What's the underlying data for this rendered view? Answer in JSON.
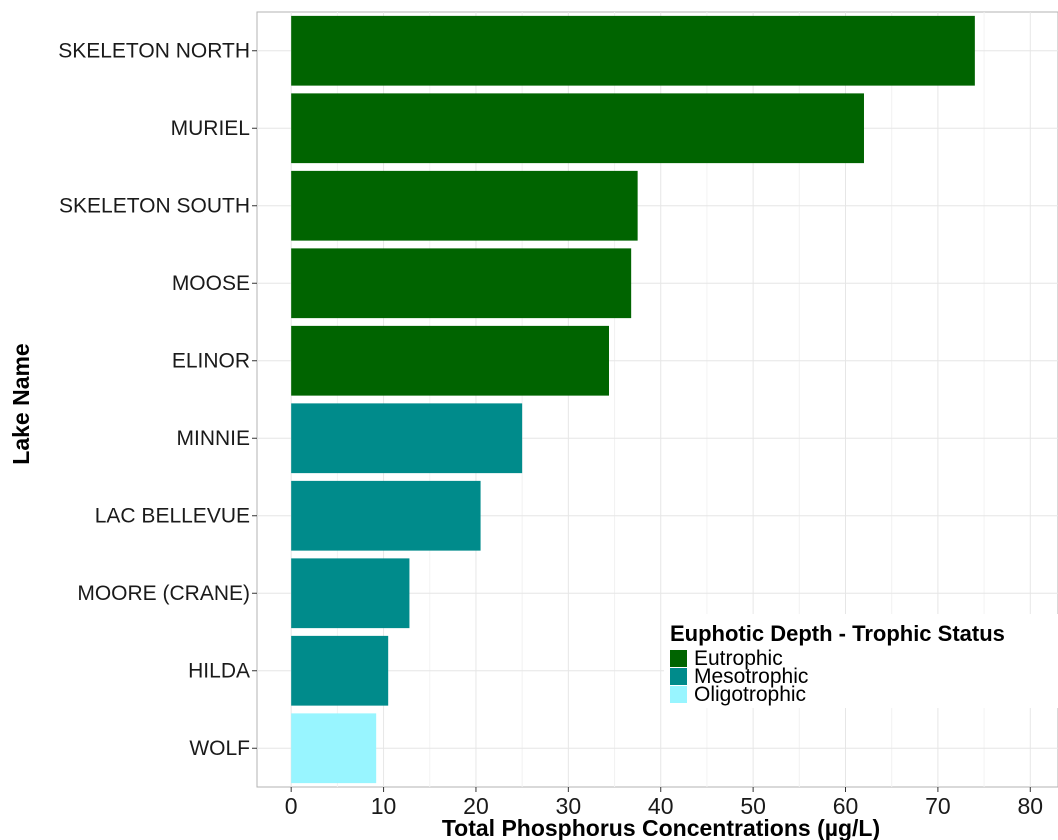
{
  "chart_data": {
    "type": "bar",
    "orientation": "horizontal",
    "title": "",
    "xlabel": "Total Phosphorus Concentrations (µg/L)",
    "ylabel": "Lake Name",
    "xlim": [
      -3.7,
      83
    ],
    "x_ticks": [
      0,
      10,
      20,
      30,
      40,
      50,
      60,
      70,
      80
    ],
    "grid": true,
    "legend_position": "bottom-right",
    "legend": {
      "title": "Euphotic Depth - Trophic Status",
      "entries": [
        {
          "label": "Eutrophic",
          "color": "#006400"
        },
        {
          "label": "Mesotrophic",
          "color": "#008B8B"
        },
        {
          "label": "Oligotrophic",
          "color": "#98F5FF"
        }
      ]
    },
    "categories": [
      "SKELETON NORTH",
      "MURIEL",
      "SKELETON SOUTH",
      "MOOSE",
      "ELINOR",
      "MINNIE",
      "LAC BELLEVUE",
      "MOORE (CRANE)",
      "HILDA",
      "WOLF"
    ],
    "values": [
      74,
      62,
      37.5,
      36.8,
      34.4,
      25,
      20.5,
      12.8,
      10.5,
      9.2
    ],
    "status": [
      "Eutrophic",
      "Eutrophic",
      "Eutrophic",
      "Eutrophic",
      "Eutrophic",
      "Mesotrophic",
      "Mesotrophic",
      "Mesotrophic",
      "Mesotrophic",
      "Oligotrophic"
    ]
  }
}
